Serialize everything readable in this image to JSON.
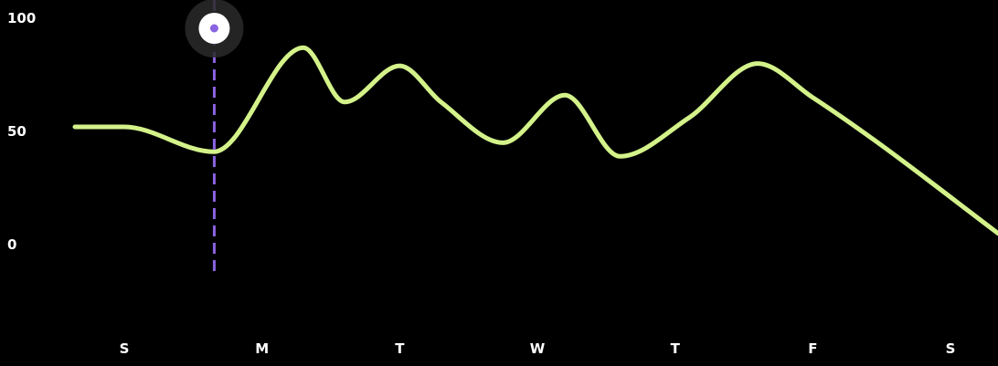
{
  "chart_data": {
    "type": "line",
    "categories": [
      "S",
      "M",
      "T",
      "W",
      "T",
      "F",
      "S"
    ],
    "y_ticks": [
      "100",
      "50",
      "0"
    ],
    "ylim": [
      0,
      100
    ],
    "title": "",
    "xlabel": "",
    "ylabel": "",
    "grid": false,
    "legend": "none",
    "series": [
      {
        "color": "#d4f28a",
        "x": [
          0,
          0.65,
          1.3,
          1.6,
          2.0,
          2.3,
          2.75,
          3.2,
          3.6,
          4.1,
          4.6,
          5.0,
          5.45,
          6.0
        ],
        "y": [
          52,
          41,
          87,
          63,
          79,
          63,
          45,
          66,
          39,
          56,
          80,
          65,
          46,
          5
        ]
      }
    ],
    "marker": {
      "x": 0.65,
      "line_color": "#8a63e0",
      "dot_color": "#8a63e0"
    }
  }
}
